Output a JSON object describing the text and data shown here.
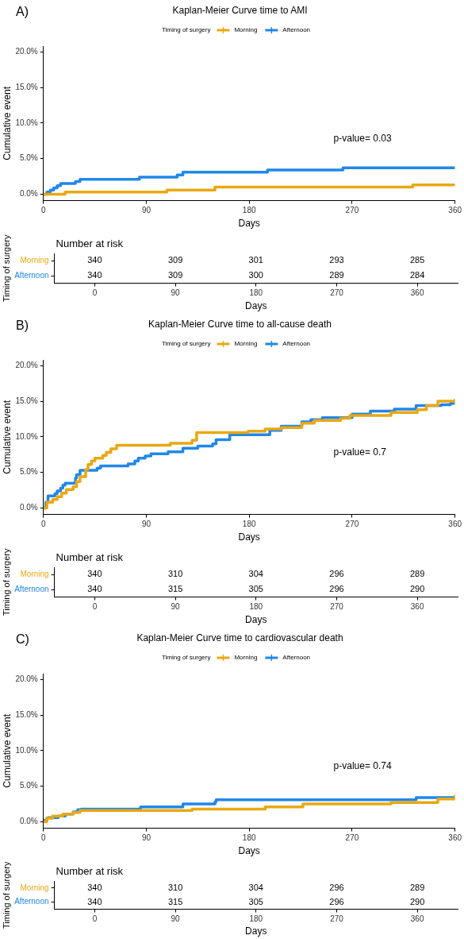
{
  "chart_data": [
    {
      "type": "step",
      "title": "Kaplan-Meier Curve time to AMI",
      "xlabel": "Days",
      "ylabel": "Cumulative event",
      "legend_title": "Timing of surgery",
      "legend": "top",
      "grid": false,
      "annotations": [
        "A)",
        "p-value= 0.03"
      ],
      "xlim": [
        0,
        360
      ],
      "xticks": [
        0,
        90,
        180,
        270,
        360
      ],
      "ylim": [
        -0.9,
        20.8
      ],
      "yticks": [
        {
          "value": 0,
          "label": "0.0%"
        },
        {
          "value": 5,
          "label": "5.0%"
        },
        {
          "value": 10,
          "label": "10.0%"
        },
        {
          "value": 15,
          "label": "15.0%"
        },
        {
          "value": 20,
          "label": "20.0%"
        }
      ],
      "series": [
        {
          "name": "Morning",
          "color": "#e9a812",
          "x": [
            0,
            19,
            108,
            150,
            323,
            360
          ],
          "values": [
            0,
            0.3,
            0.6,
            1.0,
            1.3,
            1.3
          ]
        },
        {
          "name": "Afternoon",
          "color": "#2187e9",
          "x": [
            0,
            3,
            6,
            9,
            12,
            15,
            28,
            32,
            84,
            117,
            122,
            196,
            262,
            360
          ],
          "values": [
            0,
            0.3,
            0.6,
            0.9,
            1.2,
            1.5,
            1.8,
            2.1,
            2.4,
            2.7,
            3.1,
            3.4,
            3.7,
            3.7
          ]
        }
      ]
    },
    {
      "type": "heatmap",
      "title": "Number at risk",
      "xlabel": "Days",
      "ylabel": "Timing of surgery",
      "categories": [
        "0",
        "90",
        "180",
        "270",
        "360"
      ],
      "y_categories": [
        "Morning",
        "Afternoon"
      ],
      "data_labels": true,
      "cells": [
        [
          340,
          309,
          301,
          293,
          285
        ],
        [
          340,
          309,
          300,
          289,
          284
        ]
      ]
    },
    {
      "type": "step",
      "title": "Kaplan-Meier Curve time to all-cause death",
      "xlabel": "Days",
      "ylabel": "Cumulative event",
      "legend_title": "Timing of surgery",
      "legend": "top",
      "grid": false,
      "annotations": [
        "B)",
        "p-value= 0.7"
      ],
      "xlim": [
        0,
        360
      ],
      "xticks": [
        0,
        90,
        180,
        270,
        360
      ],
      "ylim": [
        -0.9,
        20.8
      ],
      "yticks": [
        {
          "value": 0,
          "label": "0.0%"
        },
        {
          "value": 5,
          "label": "5.0%"
        },
        {
          "value": 10,
          "label": "10.0%"
        },
        {
          "value": 15,
          "label": "15.0%"
        },
        {
          "value": 20,
          "label": "20.0%"
        }
      ],
      "series": [
        {
          "name": "Morning",
          "color": "#e9a812",
          "x": [
            0,
            3,
            8,
            12,
            16,
            20,
            26,
            29,
            32,
            37,
            39,
            42,
            45,
            52,
            55,
            59,
            64,
            111,
            130,
            134,
            179,
            194,
            208,
            226,
            237,
            260,
            268,
            304,
            327,
            335,
            345,
            360
          ],
          "values": [
            0,
            0.8,
            1.2,
            1.6,
            2.1,
            2.6,
            3.0,
            3.7,
            4.4,
            5.4,
            6.1,
            6.6,
            7.0,
            7.4,
            7.8,
            8.3,
            8.8,
            9.1,
            9.5,
            10.6,
            10.8,
            11.1,
            11.3,
            11.9,
            12.3,
            12.6,
            13.0,
            13.4,
            13.8,
            14.4,
            15.0,
            15.3
          ]
        },
        {
          "name": "Afternoon",
          "color": "#2187e9",
          "x": [
            0,
            2,
            4,
            10,
            12,
            15,
            17,
            19,
            28,
            29,
            32,
            47,
            50,
            74,
            80,
            83,
            89,
            94,
            109,
            122,
            135,
            148,
            151,
            163,
            198,
            208,
            226,
            234,
            244,
            270,
            286,
            307,
            326,
            348,
            356,
            360
          ],
          "values": [
            0,
            0.8,
            1.7,
            2.0,
            2.4,
            2.8,
            3.2,
            3.5,
            4.2,
            4.7,
            5.3,
            5.6,
            5.9,
            6.2,
            6.6,
            7.0,
            7.3,
            7.6,
            7.9,
            8.4,
            8.7,
            9.0,
            9.6,
            10.3,
            10.9,
            11.5,
            12.1,
            12.4,
            12.7,
            13.2,
            13.6,
            13.9,
            14.4,
            14.5,
            14.7,
            14.7
          ]
        }
      ]
    },
    {
      "type": "heatmap",
      "title": "Number at risk",
      "xlabel": "Days",
      "ylabel": "Timing of surgery",
      "categories": [
        "0",
        "90",
        "180",
        "270",
        "360"
      ],
      "y_categories": [
        "Morning",
        "Afternoon"
      ],
      "data_labels": true,
      "cells": [
        [
          340,
          310,
          304,
          296,
          289
        ],
        [
          340,
          315,
          305,
          296,
          290
        ]
      ]
    },
    {
      "type": "step",
      "title": "Kaplan-Meier Curve time to cardiovascular death",
      "xlabel": "Days",
      "ylabel": "Cumulative event",
      "legend_title": "Timing of surgery",
      "legend": "top",
      "grid": false,
      "annotations": [
        "C)",
        "p-value= 0.74"
      ],
      "xlim": [
        0,
        360
      ],
      "xticks": [
        0,
        90,
        180,
        270,
        360
      ],
      "ylim": [
        -0.9,
        20.8
      ],
      "yticks": [
        {
          "value": 0,
          "label": "0.0%"
        },
        {
          "value": 5,
          "label": "5.0%"
        },
        {
          "value": 10,
          "label": "10.0%"
        },
        {
          "value": 15,
          "label": "15.0%"
        },
        {
          "value": 20,
          "label": "20.0%"
        }
      ],
      "series": [
        {
          "name": "Morning",
          "color": "#e9a812",
          "x": [
            0,
            3,
            8,
            17,
            26,
            32,
            130,
            194,
            227,
            304,
            345,
            360
          ],
          "values": [
            0,
            0.5,
            0.8,
            1.1,
            1.3,
            1.6,
            1.8,
            2.1,
            2.5,
            2.7,
            3.2,
            3.8
          ]
        },
        {
          "name": "Afternoon",
          "color": "#2187e9",
          "x": [
            0,
            3,
            4,
            13,
            19,
            26,
            30,
            33,
            85,
            122,
            150,
            151,
            326,
            360
          ],
          "values": [
            0.2,
            0.5,
            0.6,
            0.8,
            1.1,
            1.4,
            1.7,
            1.8,
            2.1,
            2.5,
            2.8,
            3.1,
            3.4,
            3.4
          ]
        }
      ]
    },
    {
      "type": "heatmap",
      "title": "Number at risk",
      "xlabel": "Days",
      "ylabel": "Timing of surgery",
      "categories": [
        "0",
        "90",
        "180",
        "270",
        "360"
      ],
      "y_categories": [
        "Morning",
        "Afternoon"
      ],
      "data_labels": true,
      "cells": [
        [
          340,
          310,
          304,
          296,
          289
        ],
        [
          340,
          315,
          305,
          296,
          290
        ]
      ]
    }
  ]
}
